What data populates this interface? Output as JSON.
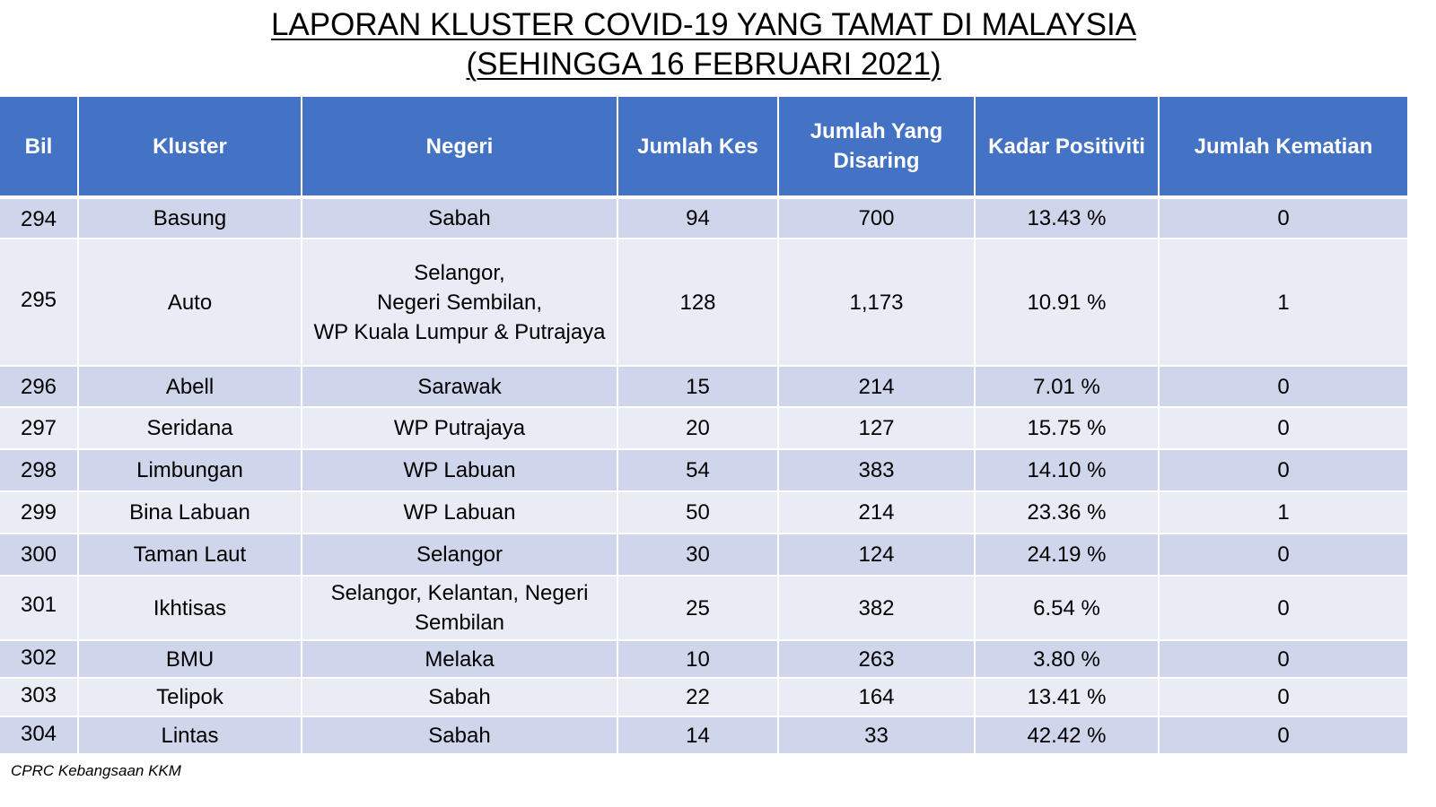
{
  "title": {
    "line1": "LAPORAN KLUSTER COVID-19 YANG TAMAT DI MALAYSIA",
    "line2": "(SEHINGGA 16 FEBRUARI 2021)"
  },
  "table": {
    "headers": [
      "Bil",
      "Kluster",
      "Negeri",
      "Jumlah Kes",
      "Jumlah Yang Disaring",
      "Kadar Positiviti",
      "Jumlah Kematian"
    ],
    "rows": [
      {
        "bil": "294",
        "kluster": "Basung",
        "negeri": "Sabah",
        "kes": "94",
        "disaring": "700",
        "positiviti": "13.43 %",
        "kematian": "0"
      },
      {
        "bil": "295",
        "kluster": "Auto",
        "negeri": "Selangor,\nNegeri Sembilan,\nWP Kuala Lumpur & Putrajaya",
        "kes": "128",
        "disaring": "1,173",
        "positiviti": "10.91 %",
        "kematian": "1"
      },
      {
        "bil": "296",
        "kluster": "Abell",
        "negeri": "Sarawak",
        "kes": "15",
        "disaring": "214",
        "positiviti": "7.01 %",
        "kematian": "0"
      },
      {
        "bil": "297",
        "kluster": "Seridana",
        "negeri": "WP Putrajaya",
        "kes": "20",
        "disaring": "127",
        "positiviti": "15.75 %",
        "kematian": "0"
      },
      {
        "bil": "298",
        "kluster": "Limbungan",
        "negeri": "WP Labuan",
        "kes": "54",
        "disaring": "383",
        "positiviti": "14.10 %",
        "kematian": "0"
      },
      {
        "bil": "299",
        "kluster": "Bina Labuan",
        "negeri": "WP Labuan",
        "kes": "50",
        "disaring": "214",
        "positiviti": "23.36 %",
        "kematian": "1"
      },
      {
        "bil": "300",
        "kluster": "Taman Laut",
        "negeri": "Selangor",
        "kes": "30",
        "disaring": "124",
        "positiviti": "24.19 %",
        "kematian": "0"
      },
      {
        "bil": "301",
        "kluster": "Ikhtisas",
        "negeri": "Selangor, Kelantan, Negeri\nSembilan",
        "kes": "25",
        "disaring": "382",
        "positiviti": "6.54 %",
        "kematian": "0"
      },
      {
        "bil": "302",
        "kluster": "BMU",
        "negeri": "Melaka",
        "kes": "10",
        "disaring": "263",
        "positiviti": "3.80 %",
        "kematian": "0"
      },
      {
        "bil": "303",
        "kluster": "Telipok",
        "negeri": "Sabah",
        "kes": "22",
        "disaring": "164",
        "positiviti": "13.41 %",
        "kematian": "0"
      },
      {
        "bil": "304",
        "kluster": "Lintas",
        "negeri": "Sabah",
        "kes": "14",
        "disaring": "33",
        "positiviti": "42.42 %",
        "kematian": "0"
      }
    ]
  },
  "footer": "CPRC Kebangsaan KKM",
  "colors": {
    "header_bg": "#4472c4",
    "row_odd": "#cfd5ea",
    "row_even": "#e9ebf5"
  }
}
